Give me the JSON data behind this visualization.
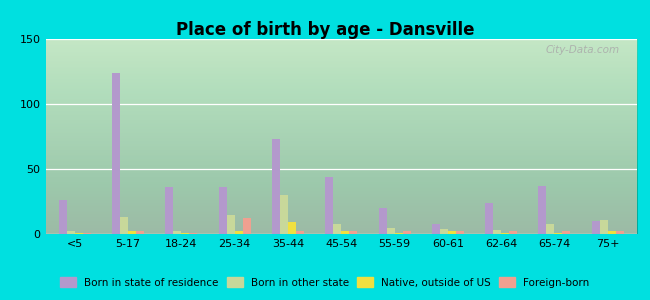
{
  "title": "Place of birth by age - Dansville",
  "background_color": "#00e0e0",
  "categories": [
    "<5",
    "5-17",
    "18-24",
    "25-34",
    "35-44",
    "45-54",
    "55-59",
    "60-61",
    "62-64",
    "65-74",
    "75+"
  ],
  "series": {
    "Born in state of residence": {
      "color": "#b399cc",
      "values": [
        26,
        124,
        36,
        36,
        73,
        44,
        20,
        8,
        24,
        37,
        10
      ]
    },
    "Born in other state": {
      "color": "#c8d89a",
      "values": [
        2,
        13,
        2,
        15,
        30,
        8,
        5,
        4,
        3,
        8,
        11
      ]
    },
    "Native, outside of US": {
      "color": "#f0e040",
      "values": [
        1,
        2,
        1,
        2,
        9,
        2,
        1,
        2,
        1,
        1,
        2
      ]
    },
    "Foreign-born": {
      "color": "#f0a090",
      "values": [
        1,
        2,
        1,
        12,
        2,
        2,
        2,
        2,
        2,
        2,
        2
      ]
    }
  },
  "ylim": [
    0,
    150
  ],
  "yticks": [
    0,
    50,
    100,
    150
  ],
  "bar_width": 0.15,
  "watermark": "City-Data.com"
}
